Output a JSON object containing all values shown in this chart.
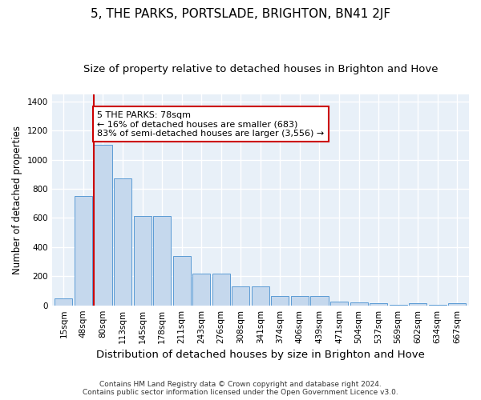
{
  "title": "5, THE PARKS, PORTSLADE, BRIGHTON, BN41 2JF",
  "subtitle": "Size of property relative to detached houses in Brighton and Hove",
  "xlabel": "Distribution of detached houses by size in Brighton and Hove",
  "ylabel": "Number of detached properties",
  "footnote1": "Contains HM Land Registry data © Crown copyright and database right 2024.",
  "footnote2": "Contains public sector information licensed under the Open Government Licence v3.0.",
  "categories": [
    "15sqm",
    "48sqm",
    "80sqm",
    "113sqm",
    "145sqm",
    "178sqm",
    "211sqm",
    "243sqm",
    "276sqm",
    "308sqm",
    "341sqm",
    "374sqm",
    "406sqm",
    "439sqm",
    "471sqm",
    "504sqm",
    "537sqm",
    "569sqm",
    "602sqm",
    "634sqm",
    "667sqm"
  ],
  "values": [
    50,
    750,
    1100,
    870,
    615,
    615,
    340,
    220,
    220,
    130,
    130,
    65,
    65,
    65,
    25,
    20,
    12,
    2,
    12,
    2,
    12
  ],
  "bar_color": "#c5d8ed",
  "bar_edge_color": "#5b9bd5",
  "highlight_bar_index": 2,
  "highlight_line_color": "#cc0000",
  "annotation_text": "5 THE PARKS: 78sqm\n← 16% of detached houses are smaller (683)\n83% of semi-detached houses are larger (3,556) →",
  "annotation_box_color": "#ffffff",
  "annotation_box_edge_color": "#cc0000",
  "ylim": [
    0,
    1450
  ],
  "yticks": [
    0,
    200,
    400,
    600,
    800,
    1000,
    1200,
    1400
  ],
  "background_color": "#e8f0f8",
  "grid_color": "#ffffff",
  "title_fontsize": 11,
  "subtitle_fontsize": 9.5,
  "xlabel_fontsize": 9.5,
  "ylabel_fontsize": 8.5,
  "tick_fontsize": 7.5,
  "annotation_fontsize": 8
}
